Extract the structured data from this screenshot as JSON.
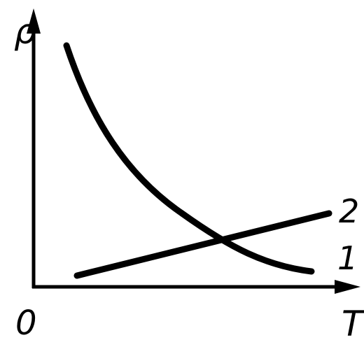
{
  "axes": {
    "y_label": "ρ",
    "x_label": "T",
    "origin": "0"
  },
  "curves": [
    {
      "label": "1"
    },
    {
      "label": "2"
    }
  ]
}
